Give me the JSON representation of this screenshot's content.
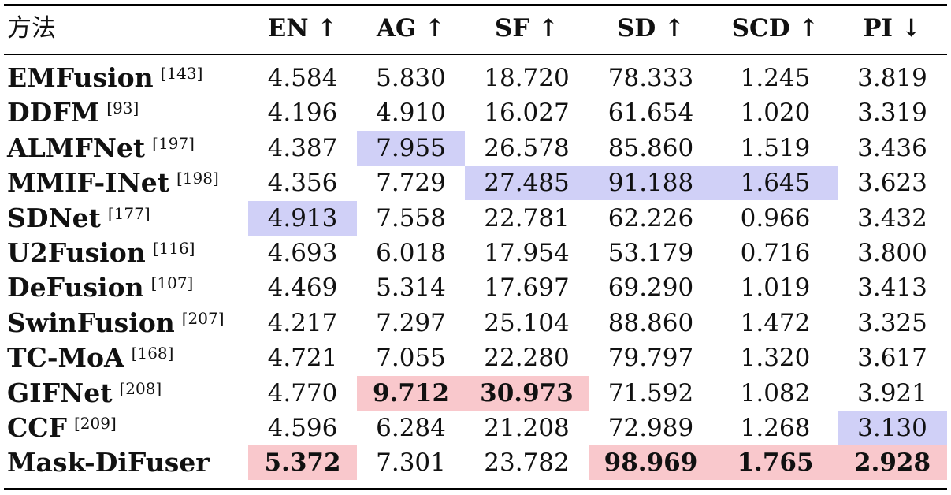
{
  "header": {
    "method": "方法",
    "columns": [
      "EN ↑",
      "AG ↑",
      "SF ↑",
      "SD ↑",
      "SCD ↑",
      "PI ↓"
    ]
  },
  "rows": [
    {
      "method": "EMFusion",
      "ref": "[143]",
      "values": [
        "4.584",
        "5.830",
        "18.720",
        "78.333",
        "1.245",
        "3.819"
      ]
    },
    {
      "method": "DDFM",
      "ref": "[93]",
      "values": [
        "4.196",
        "4.910",
        "16.027",
        "61.654",
        "1.020",
        "3.319"
      ]
    },
    {
      "method": "ALMFNet",
      "ref": "[197]",
      "values": [
        "4.387",
        "7.955",
        "26.578",
        "85.860",
        "1.519",
        "3.436"
      ]
    },
    {
      "method": "MMIF-INet",
      "ref": "[198]",
      "values": [
        "4.356",
        "7.729",
        "27.485",
        "91.188",
        "1.645",
        "3.623"
      ]
    },
    {
      "method": "SDNet",
      "ref": "[177]",
      "values": [
        "4.913",
        "7.558",
        "22.781",
        "62.226",
        "0.966",
        "3.432"
      ]
    },
    {
      "method": "U2Fusion",
      "ref": "[116]",
      "values": [
        "4.693",
        "6.018",
        "17.954",
        "53.179",
        "0.716",
        "3.800"
      ]
    },
    {
      "method": "DeFusion",
      "ref": "[107]",
      "values": [
        "4.469",
        "5.314",
        "17.697",
        "69.290",
        "1.019",
        "3.413"
      ]
    },
    {
      "method": "SwinFusion",
      "ref": "[207]",
      "values": [
        "4.217",
        "7.297",
        "25.104",
        "88.860",
        "1.472",
        "3.325"
      ]
    },
    {
      "method": "TC-MoA",
      "ref": "[168]",
      "values": [
        "4.721",
        "7.055",
        "22.280",
        "79.797",
        "1.320",
        "3.617"
      ]
    },
    {
      "method": "GIFNet",
      "ref": "[208]",
      "values": [
        "4.770",
        "9.712",
        "30.973",
        "71.592",
        "1.082",
        "3.921"
      ]
    },
    {
      "method": "CCF",
      "ref": "[209]",
      "values": [
        "4.596",
        "6.284",
        "21.208",
        "72.989",
        "1.268",
        "3.130"
      ]
    },
    {
      "method": "Mask-DiFuser",
      "ref": "",
      "values": [
        "5.372",
        "7.301",
        "23.782",
        "98.969",
        "1.765",
        "2.928"
      ]
    }
  ],
  "highlights": {
    "colors": {
      "best": "#f9c8cc",
      "second": "#d0d0f7"
    },
    "best": [
      [
        9,
        1
      ],
      [
        9,
        2
      ],
      [
        11,
        0
      ],
      [
        11,
        3
      ],
      [
        11,
        4
      ],
      [
        11,
        5
      ]
    ],
    "second": [
      [
        2,
        1
      ],
      [
        3,
        2
      ],
      [
        3,
        3
      ],
      [
        3,
        4
      ],
      [
        4,
        0
      ],
      [
        10,
        5
      ]
    ]
  }
}
